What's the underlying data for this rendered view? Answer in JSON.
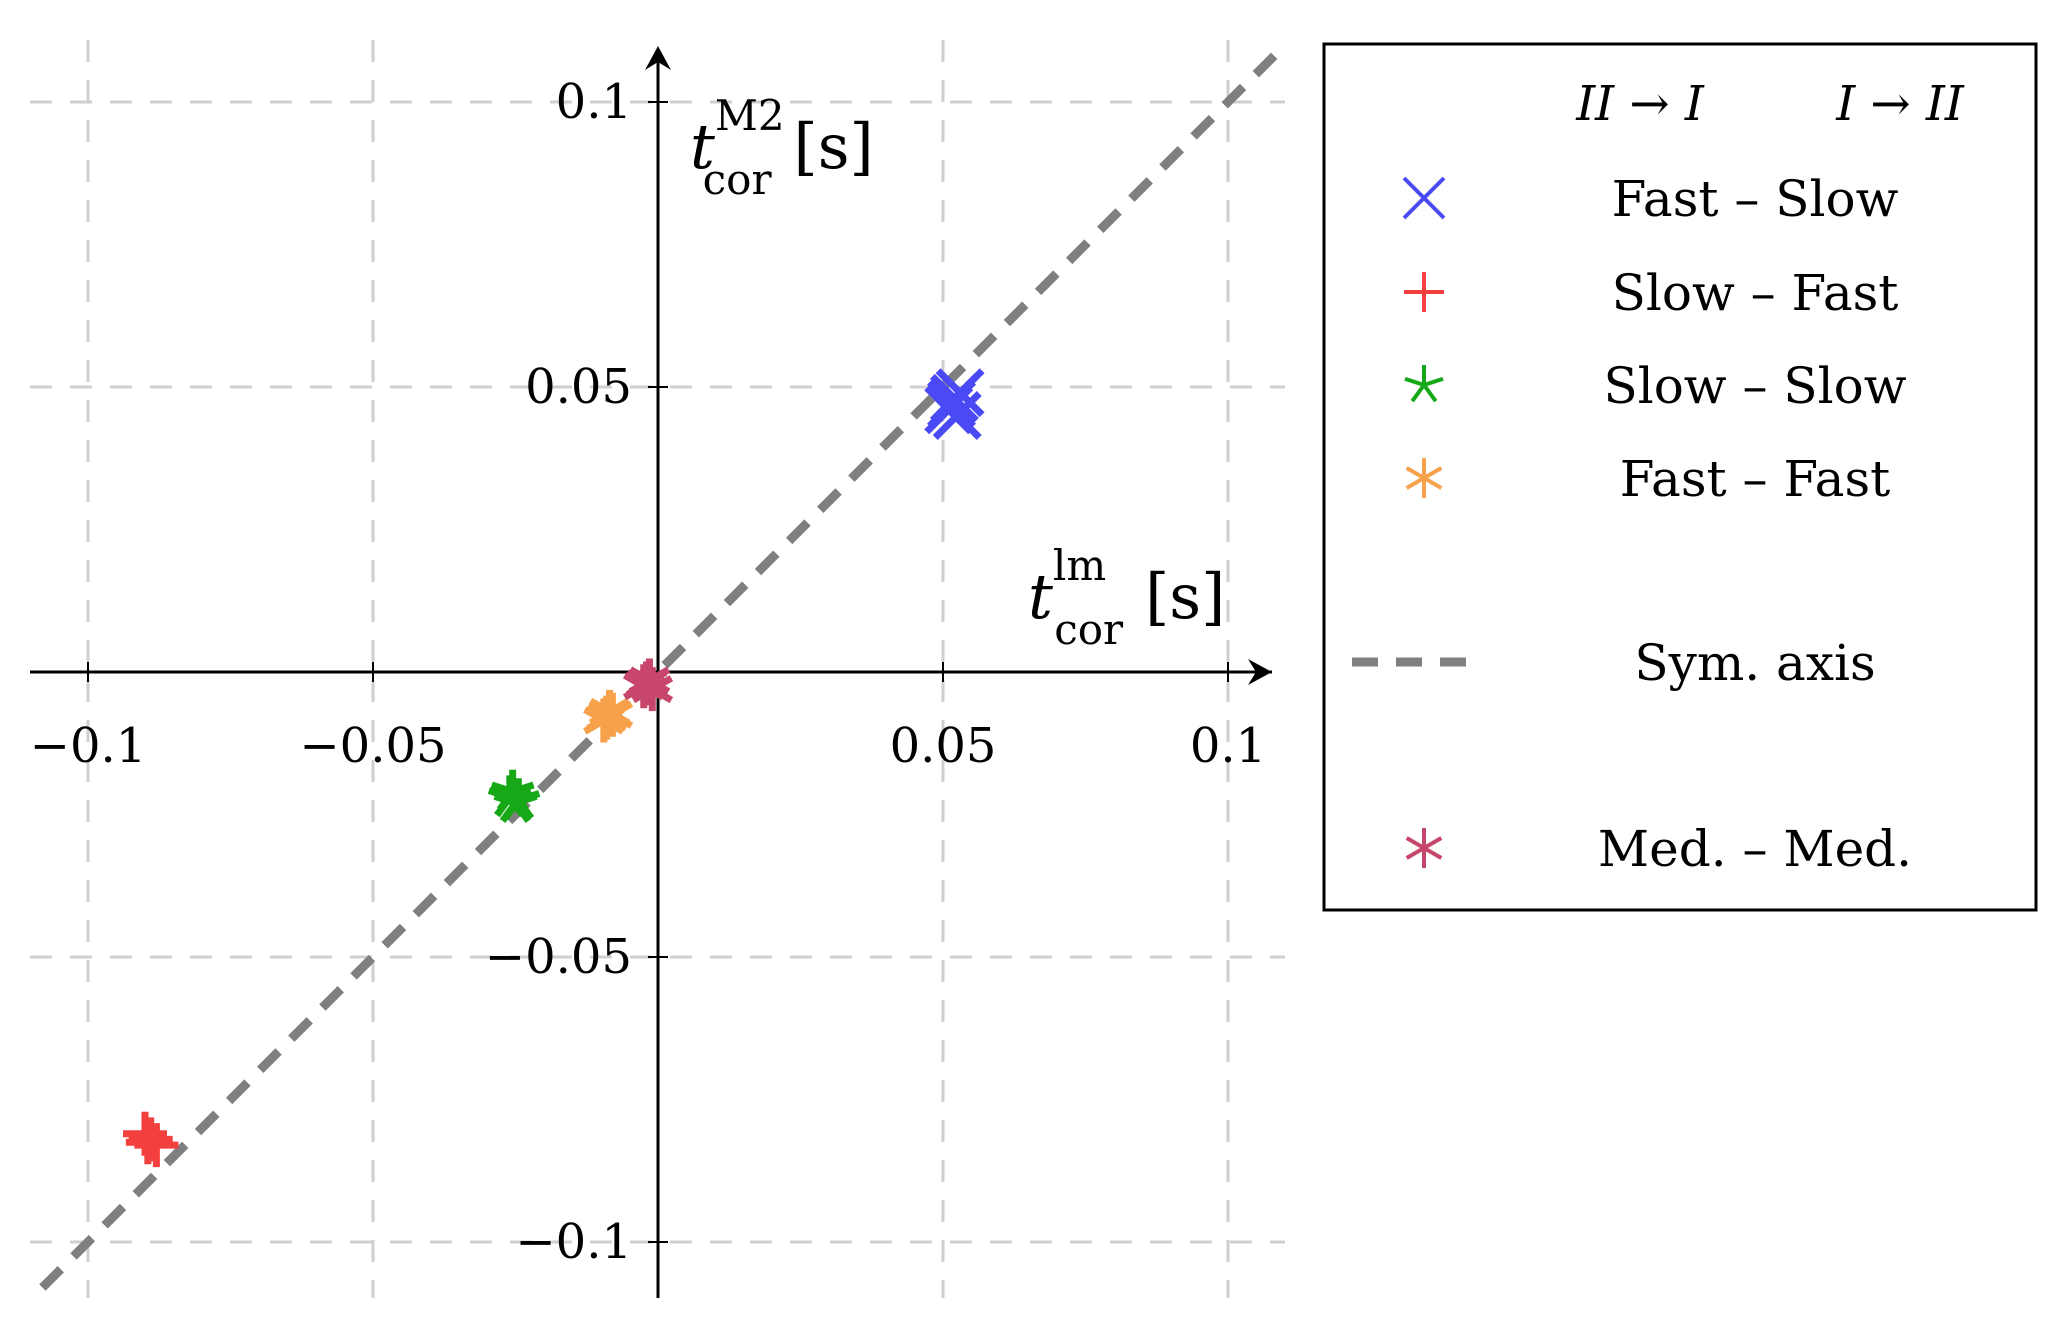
{
  "chart_data": {
    "type": "scatter",
    "xlabel": {
      "base": "t",
      "sup": "lm",
      "sub": "cor",
      "unit": "[s]"
    },
    "ylabel": {
      "base": "t",
      "sup": "M2",
      "sub": "cor",
      "unit": "[s]"
    },
    "xlim": [
      -0.11,
      0.11
    ],
    "ylim": [
      -0.11,
      0.1
    ],
    "grid": true,
    "x_ticks": [
      {
        "value": -0.1,
        "label": "−0.1"
      },
      {
        "value": -0.05,
        "label": "−0.05"
      },
      {
        "value": 0.05,
        "label": "0.05"
      },
      {
        "value": 0.1,
        "label": "0.1"
      }
    ],
    "y_ticks": [
      {
        "value": 0.1,
        "label": "0.1"
      },
      {
        "value": 0.05,
        "label": "0.05"
      },
      {
        "value": -0.05,
        "label": "−0.05"
      },
      {
        "value": -0.1,
        "label": "−0.1"
      }
    ],
    "legend_header": {
      "col1": "II → I",
      "col2": "I → II"
    },
    "legend_position": "right",
    "series": [
      {
        "name": "Fast – Slow",
        "marker": "x",
        "color": "#4a4af4",
        "x": [
          0.051,
          0.052,
          0.053,
          0.0515,
          0.0525
        ],
        "y": [
          0.046,
          0.048,
          0.049,
          0.047,
          0.045
        ]
      },
      {
        "name": "Slow – Fast",
        "marker": "plus",
        "color": "#f43f3f",
        "x": [
          -0.09,
          -0.089,
          -0.088,
          -0.0895
        ],
        "y": [
          -0.081,
          -0.082,
          -0.083,
          -0.0825
        ]
      },
      {
        "name": "Slow – Slow",
        "marker": "star",
        "color": "#16a816",
        "x": [
          -0.026,
          -0.025,
          -0.0255,
          -0.0245
        ],
        "y": [
          -0.022,
          -0.023,
          -0.021,
          -0.0225
        ]
      },
      {
        "name": "Fast – Fast",
        "marker": "asterisk",
        "color": "#f7a24a",
        "x": [
          -0.009,
          -0.0085,
          -0.0095,
          -0.008
        ],
        "y": [
          -0.008,
          -0.007,
          -0.0085,
          -0.0075
        ]
      },
      {
        "name": "Med. – Med.",
        "marker": "asterisk",
        "color": "#c8466c",
        "x": [
          -0.002,
          -0.001,
          -0.0015,
          -0.0025
        ],
        "y": [
          -0.002,
          -0.003,
          -0.0015,
          -0.0025
        ]
      }
    ],
    "sym_axis": {
      "name": "Sym. axis",
      "color": "#7f7f7f",
      "x": [
        -0.108,
        0.109
      ],
      "y": [
        -0.108,
        0.109
      ]
    }
  }
}
